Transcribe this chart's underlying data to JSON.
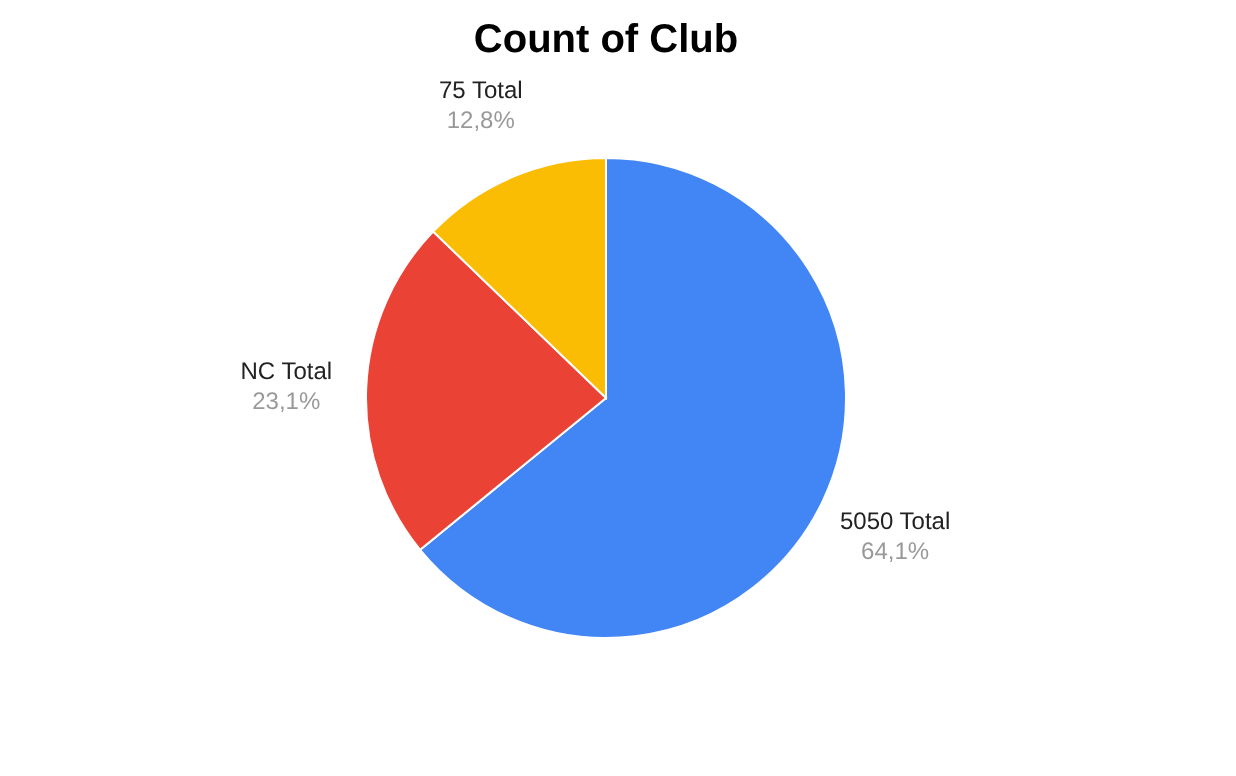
{
  "chart_data": {
    "type": "pie",
    "title": "Count of Club",
    "categories": [
      "5050 Total",
      "NC Total",
      "75 Total"
    ],
    "values": [
      64.1,
      23.1,
      12.8
    ],
    "colors": [
      "#4285f4",
      "#ea4335",
      "#fbbc04"
    ],
    "value_labels": [
      "64,1%",
      "23,1%",
      "12,8%"
    ]
  }
}
